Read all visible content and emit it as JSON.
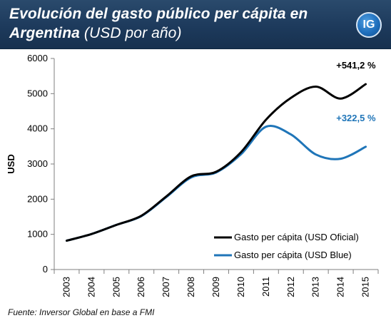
{
  "header": {
    "title_main": "Evolución del gasto público per cápita en Argentina",
    "title_unit": "(USD por año)",
    "logo_text": "IG",
    "background_color": "#1d3a5c"
  },
  "source": "Fuente: Inversor Global en base a FMI",
  "chart_data": {
    "type": "line",
    "title": "Evolución del gasto público per cápita en Argentina (USD por año)",
    "xlabel": "",
    "ylabel": "USD",
    "x": [
      "2003",
      "2004",
      "2005",
      "2006",
      "2007",
      "2008",
      "2009",
      "2010",
      "2011",
      "2012",
      "2013",
      "2014",
      "2015"
    ],
    "ylim": [
      0,
      6000
    ],
    "yticks": [
      0,
      1000,
      2000,
      3000,
      4000,
      5000,
      6000
    ],
    "grid": false,
    "legend_position": "bottom-right",
    "series": [
      {
        "name": "Gasto per cápita (USD Oficial)",
        "color": "#000000",
        "values": [
          820,
          1010,
          1270,
          1530,
          2080,
          2650,
          2780,
          3340,
          4260,
          4880,
          5200,
          4860,
          5270
        ],
        "end_label": "+541,2 %"
      },
      {
        "name": "Gasto per cápita (USD Blue)",
        "color": "#1f75b8",
        "values": [
          820,
          1010,
          1270,
          1520,
          2060,
          2620,
          2760,
          3280,
          4060,
          3840,
          3270,
          3150,
          3490
        ],
        "end_label": "+322,5 %"
      }
    ]
  }
}
